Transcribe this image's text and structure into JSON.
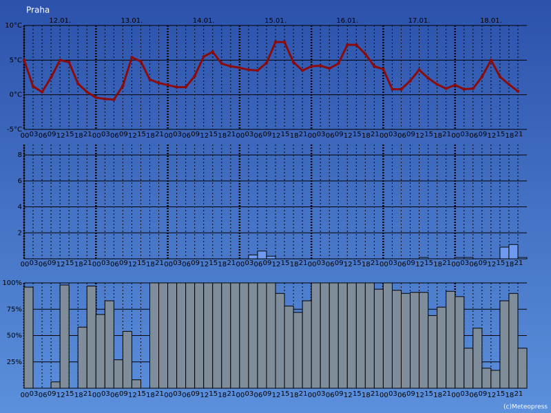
{
  "title": "Praha",
  "credit": "(c)Meteopress",
  "chart_data": [
    {
      "type": "line",
      "color": "#8b0b0b",
      "days": [
        "12.01.",
        "13.01.",
        "14.01.",
        "15.01.",
        "16.01.",
        "17.01.",
        "18.01."
      ],
      "categories": [
        "00",
        "03",
        "06",
        "09",
        "12",
        "15",
        "18",
        "21",
        "00",
        "03",
        "06",
        "09",
        "12",
        "15",
        "18",
        "21",
        "00",
        "03",
        "06",
        "09",
        "12",
        "15",
        "18",
        "21",
        "00",
        "03",
        "06",
        "09",
        "12",
        "15",
        "18",
        "21",
        "00",
        "03",
        "06",
        "09",
        "12",
        "15",
        "18",
        "21",
        "00",
        "03",
        "06",
        "09",
        "12",
        "15",
        "18",
        "21",
        "00",
        "03",
        "06",
        "09",
        "12",
        "15",
        "18",
        "21"
      ],
      "values": [
        5.0,
        1.2,
        0.4,
        2.5,
        5.0,
        4.7,
        1.6,
        0.4,
        -0.4,
        -0.6,
        -0.7,
        1.3,
        5.4,
        4.8,
        2.2,
        1.7,
        1.4,
        1.1,
        1.1,
        2.7,
        5.5,
        6.2,
        4.5,
        4.1,
        3.9,
        3.6,
        3.5,
        4.6,
        7.6,
        7.6,
        4.7,
        3.5,
        4.1,
        4.2,
        3.8,
        4.5,
        7.2,
        7.2,
        5.9,
        4.1,
        3.7,
        0.8,
        0.8,
        2.0,
        3.6,
        2.4,
        1.5,
        0.9,
        1.4,
        0.8,
        0.9,
        2.6,
        5.0,
        2.6,
        1.5,
        0.5
      ],
      "ylim": [
        -5,
        10
      ],
      "yticks": [
        {
          "value": -5,
          "label": "-5°C"
        },
        {
          "value": 0,
          "label": "0°C"
        },
        {
          "value": 5,
          "label": "5°C"
        },
        {
          "value": 10,
          "label": "10°C"
        }
      ]
    },
    {
      "type": "bar",
      "color": "#6e9bf0",
      "categories": [
        "00",
        "03",
        "06",
        "09",
        "12",
        "15",
        "18",
        "21",
        "00",
        "03",
        "06",
        "09",
        "12",
        "15",
        "18",
        "21",
        "00",
        "03",
        "06",
        "09",
        "12",
        "15",
        "18",
        "21",
        "00",
        "03",
        "06",
        "09",
        "12",
        "15",
        "18",
        "21",
        "00",
        "03",
        "06",
        "09",
        "12",
        "15",
        "18",
        "21",
        "00",
        "03",
        "06",
        "09",
        "12",
        "15",
        "18",
        "21",
        "00",
        "03",
        "06",
        "09",
        "12",
        "15",
        "18",
        "21"
      ],
      "values": [
        0,
        0,
        0,
        0,
        0,
        0,
        0,
        0,
        0,
        0,
        0,
        0,
        0,
        0,
        0,
        0,
        0,
        0,
        0,
        0,
        0,
        0,
        0,
        0,
        0,
        0.3,
        0.6,
        0.2,
        0,
        0,
        0,
        0,
        0,
        0,
        0,
        0,
        0,
        0,
        0,
        0,
        0,
        0,
        0,
        0,
        0.1,
        0,
        0,
        0,
        0.1,
        0.1,
        0,
        0,
        0,
        0.9,
        1.1,
        0.1
      ],
      "ylim": [
        0,
        8.8
      ],
      "yticks": [
        2,
        4,
        6,
        8
      ]
    },
    {
      "type": "bar",
      "color": "#7f8c9a",
      "categories": [
        "00",
        "03",
        "06",
        "09",
        "12",
        "15",
        "18",
        "21",
        "00",
        "03",
        "06",
        "09",
        "12",
        "15",
        "18",
        "21",
        "00",
        "03",
        "06",
        "09",
        "12",
        "15",
        "18",
        "21",
        "00",
        "03",
        "06",
        "09",
        "12",
        "15",
        "18",
        "21",
        "00",
        "03",
        "06",
        "09",
        "12",
        "15",
        "18",
        "21",
        "00",
        "03",
        "06",
        "09",
        "12",
        "15",
        "18",
        "21",
        "00",
        "03",
        "06",
        "09",
        "12",
        "15",
        "18",
        "21"
      ],
      "values": [
        96,
        0,
        0,
        6,
        98,
        0,
        58,
        97,
        70,
        83,
        27,
        54,
        8,
        0,
        100,
        100,
        100,
        100,
        100,
        100,
        100,
        100,
        100,
        100,
        100,
        100,
        100,
        100,
        90,
        78,
        72,
        83,
        100,
        100,
        100,
        100,
        100,
        100,
        100,
        94,
        100,
        93,
        90,
        91,
        91,
        69,
        77,
        92,
        87,
        38,
        57,
        19,
        17,
        83,
        90,
        38
      ],
      "ylim": [
        0,
        100
      ],
      "yticks": [
        {
          "value": 25,
          "label": "25%"
        },
        {
          "value": 50,
          "label": "50%"
        },
        {
          "value": 75,
          "label": "75%"
        },
        {
          "value": 100,
          "label": "100%"
        }
      ]
    }
  ]
}
